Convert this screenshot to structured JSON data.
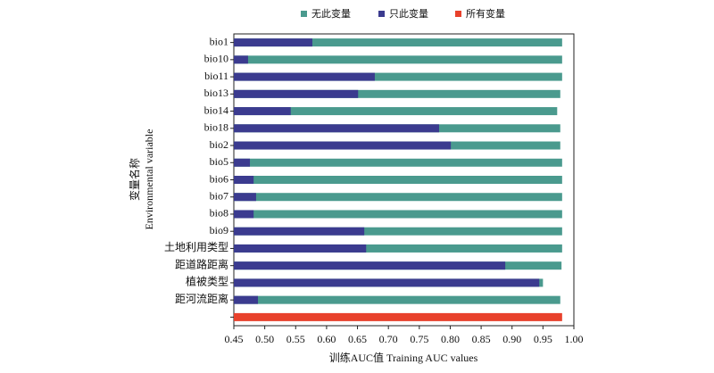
{
  "chart_data": {
    "type": "bar",
    "orientation": "horizontal",
    "xlabel": "训练AUC值 Training AUC values",
    "ylabel": [
      "变量名称",
      "Environmental variable"
    ],
    "categories": [
      "bio1",
      "bio10",
      "bio11",
      "bio13",
      "bio14",
      "bio18",
      "bio2",
      "bio5",
      "bio6",
      "bio7",
      "bio8",
      "bio9",
      "土地利用类型",
      "距道路距离",
      "植被类型",
      "距河流距离",
      null
    ],
    "series": [
      {
        "name": "无此变量",
        "color": "#4a9a8e",
        "values": [
          0.981,
          0.981,
          0.981,
          0.978,
          0.973,
          0.978,
          0.978,
          0.981,
          0.981,
          0.981,
          0.981,
          0.981,
          0.981,
          0.98,
          0.95,
          0.978,
          null
        ]
      },
      {
        "name": "只此变量",
        "color": "#3b3b8f",
        "values": [
          0.577,
          0.473,
          0.678,
          0.651,
          0.542,
          0.782,
          0.801,
          0.476,
          0.482,
          0.486,
          0.482,
          0.661,
          0.664,
          0.889,
          0.944,
          0.489,
          null
        ]
      },
      {
        "name": "所有变量",
        "color": "#e8412c",
        "values": [
          null,
          null,
          null,
          null,
          null,
          null,
          null,
          null,
          null,
          null,
          null,
          null,
          null,
          null,
          null,
          null,
          0.981
        ]
      }
    ],
    "xlim": [
      0.45,
      1.0
    ],
    "xticks": [
      0.45,
      {
        "value": 0.5,
        "label": "0.50"
      },
      0.55,
      {
        "value": 0.6,
        "label": "0.60"
      },
      0.65,
      {
        "value": 0.7,
        "label": "0.70"
      },
      0.75,
      {
        "value": 0.8,
        "label": "0.80"
      },
      0.85,
      {
        "value": 0.9,
        "label": "0.90"
      },
      0.95,
      {
        "value": 1.0,
        "label": "1.00"
      }
    ],
    "legend": "top",
    "grid": false
  }
}
